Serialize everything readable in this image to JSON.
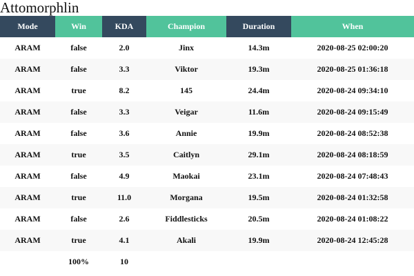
{
  "title": "Attomorphlin",
  "colors": {
    "header_dark": "#34495e",
    "header_teal": "#51c39b",
    "row_stripe": "#f8f8f8"
  },
  "columns": [
    {
      "label": "Mode",
      "style": "dark"
    },
    {
      "label": "Win",
      "style": "teal"
    },
    {
      "label": "KDA",
      "style": "dark"
    },
    {
      "label": "Champion",
      "style": "teal"
    },
    {
      "label": "Duration",
      "style": "dark"
    },
    {
      "label": "When",
      "style": "teal"
    }
  ],
  "rows": [
    {
      "mode": "ARAM",
      "win": "false",
      "kda": "2.0",
      "champion": "Jinx",
      "duration": "14.3m",
      "when": "2020-08-25 02:00:20"
    },
    {
      "mode": "ARAM",
      "win": "false",
      "kda": "3.3",
      "champion": "Viktor",
      "duration": "19.3m",
      "when": "2020-08-25 01:36:18"
    },
    {
      "mode": "ARAM",
      "win": "true",
      "kda": "8.2",
      "champion": "145",
      "duration": "24.4m",
      "when": "2020-08-24 09:34:10"
    },
    {
      "mode": "ARAM",
      "win": "false",
      "kda": "3.3",
      "champion": "Veigar",
      "duration": "11.6m",
      "when": "2020-08-24 09:15:49"
    },
    {
      "mode": "ARAM",
      "win": "false",
      "kda": "3.6",
      "champion": "Annie",
      "duration": "19.9m",
      "when": "2020-08-24 08:52:38"
    },
    {
      "mode": "ARAM",
      "win": "true",
      "kda": "3.5",
      "champion": "Caitlyn",
      "duration": "29.1m",
      "when": "2020-08-24 08:18:59"
    },
    {
      "mode": "ARAM",
      "win": "false",
      "kda": "4.9",
      "champion": "Maokai",
      "duration": "23.1m",
      "when": "2020-08-24 07:48:43"
    },
    {
      "mode": "ARAM",
      "win": "true",
      "kda": "11.0",
      "champion": "Morgana",
      "duration": "19.5m",
      "when": "2020-08-24 01:32:58"
    },
    {
      "mode": "ARAM",
      "win": "false",
      "kda": "2.6",
      "champion": "Fiddlesticks",
      "duration": "20.5m",
      "when": "2020-08-24 01:08:22"
    },
    {
      "mode": "ARAM",
      "win": "true",
      "kda": "4.1",
      "champion": "Akali",
      "duration": "19.9m",
      "when": "2020-08-24 12:45:28"
    }
  ],
  "footer": {
    "mode": "",
    "win": "100%",
    "kda": "10",
    "champion": "",
    "duration": "",
    "when": ""
  }
}
